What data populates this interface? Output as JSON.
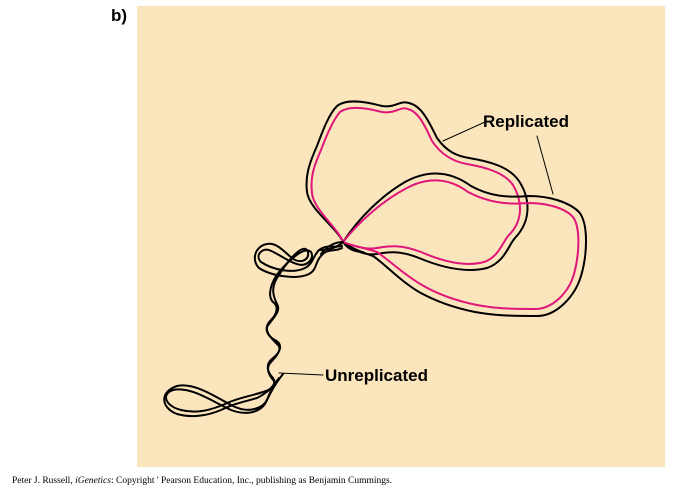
{
  "panel_letter": "b)",
  "labels": {
    "replicated": "Replicated",
    "unreplicated": "Unreplicated"
  },
  "caption": {
    "author": "Peter J. Russell, ",
    "book": "iGenetics",
    "rest": ": Copyright ' Pearson Education, Inc., publishing as Benjamin Cummings."
  },
  "colors": {
    "background": "#fbe5bd",
    "parental_strand": "#000000",
    "new_strand": "#e0157a"
  }
}
